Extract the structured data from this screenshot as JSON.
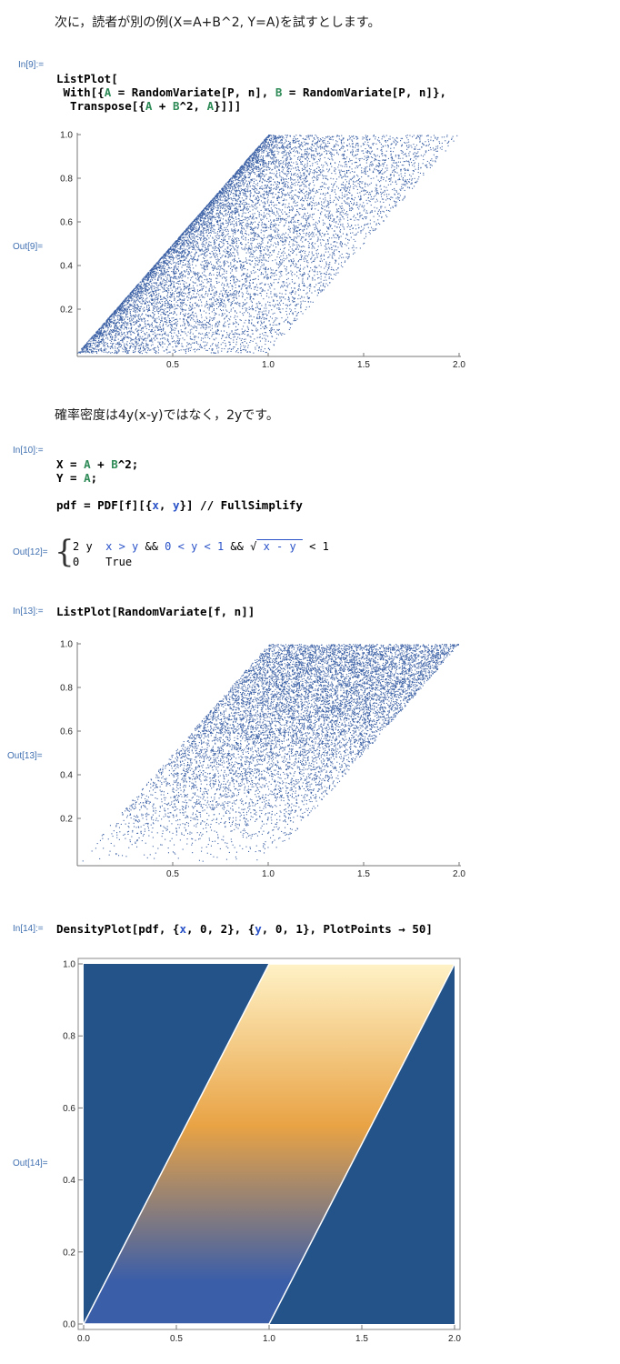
{
  "text1": "次に，読者が別の例(X=A+B^2, Y=A)を試すとします。",
  "text2": "確率密度は4y(x-y)ではなく，2yです。",
  "in9_label": "In[9]:=",
  "out9_label": "Out[9]=",
  "in10_label": "In[10]:=",
  "out12_label": "Out[12]=",
  "in13_label": "In[13]:=",
  "out13_label": "Out[13]=",
  "in14_label": "In[14]:=",
  "out14_label": "Out[14]=",
  "code9": {
    "line1": "ListPlot[",
    "line2a": " With[{",
    "line2b": "A",
    "line2c": " = RandomVariate[P, n], ",
    "line2d": "B",
    "line2e": " = RandomVariate[P, n]},",
    "line3a": "  Transpose[{",
    "line3b": "A",
    "line3c": " + ",
    "line3d": "B",
    "line3e": "^2, ",
    "line3f": "A",
    "line3g": "}]]]"
  },
  "code10": {
    "line1a": "X = ",
    "line1b": "A",
    "line1c": " + ",
    "line1d": "B",
    "line1e": "^2;",
    "line2a": "Y = ",
    "line2b": "A",
    "line2c": ";",
    "line3a": "pdf = PDF[f][{",
    "line3b": "x",
    "line3c": ", ",
    "line3d": "y",
    "line3e": "}] // FullSimplify"
  },
  "piecewise": {
    "row1_val": "2 y",
    "row1_c1": "x > y",
    "row1_and1": " && ",
    "row1_c2": "0 < y < 1",
    "row1_and2": " && ",
    "row1_sqrt": "√",
    "row1_rad": " x - y ",
    "row1_c3": " < 1",
    "row2_val": "0",
    "row2_cond": "True"
  },
  "code13": "ListPlot[RandomVariate[f, n]]",
  "code14": {
    "a": "DensityPlot[pdf, {",
    "b": "x",
    "c": ", 0, 2}, {",
    "d": "y",
    "e": ", 0, 1}, PlotPoints → 50]"
  },
  "colors": {
    "label": "#3f6fb0",
    "points": "#3d62a6",
    "density_bg": "#24538a",
    "density_low": "#3b5ea8",
    "density_mid": "#e9a345",
    "density_high": "#fff2c6"
  },
  "chart_data": [
    {
      "type": "scatter",
      "name": "Out[9]",
      "xlim": [
        0,
        2
      ],
      "ylim": [
        0,
        1
      ],
      "x_ticks": [
        "0.5",
        "1.0",
        "1.5",
        "2.0"
      ],
      "y_ticks": [
        "0.2",
        "0.4",
        "0.6",
        "0.8",
        "1.0"
      ],
      "region": "x = y + b^2, 0<y<1, 0<b<1",
      "points": 10000
    },
    {
      "type": "scatter",
      "name": "Out[13]",
      "xlim": [
        0,
        2
      ],
      "ylim": [
        0,
        1
      ],
      "x_ticks": [
        "0.5",
        "1.0",
        "1.5",
        "2.0"
      ],
      "y_ticks": [
        "0.2",
        "0.4",
        "0.6",
        "0.8",
        "1.0"
      ],
      "region": "y < x < y + 1, 0<y<1",
      "points": 10000
    },
    {
      "type": "heatmap",
      "name": "Out[14]",
      "xlim": [
        0,
        2
      ],
      "ylim": [
        0,
        1
      ],
      "x_ticks": [
        "0.0",
        "0.5",
        "1.0",
        "1.5",
        "2.0"
      ],
      "y_ticks": [
        "0.0",
        "0.2",
        "0.4",
        "0.6",
        "0.8",
        "1.0"
      ],
      "region": "y < x < y + 1",
      "value": "2y"
    }
  ]
}
